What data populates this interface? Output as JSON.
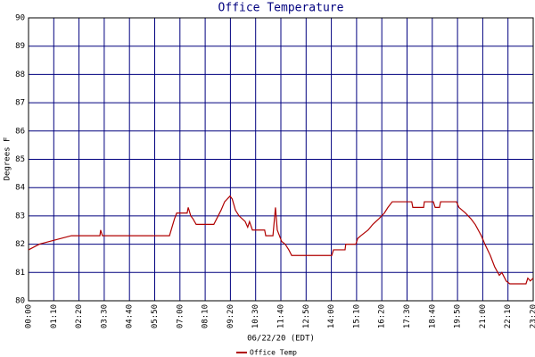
{
  "chart_data": {
    "type": "line",
    "title": "Office Temperature",
    "ylabel": "Degrees F",
    "xlabel": "06/22/20 (EDT)",
    "xlim": [
      0,
      1400
    ],
    "ylim": [
      80,
      90
    ],
    "yticks": [
      80,
      81,
      82,
      83,
      84,
      85,
      86,
      87,
      88,
      89,
      90
    ],
    "xticks": [
      {
        "value": 0,
        "label": "00:00"
      },
      {
        "value": 70,
        "label": "01:10"
      },
      {
        "value": 140,
        "label": "02:20"
      },
      {
        "value": 210,
        "label": "03:30"
      },
      {
        "value": 280,
        "label": "04:40"
      },
      {
        "value": 350,
        "label": "05:50"
      },
      {
        "value": 420,
        "label": "07:00"
      },
      {
        "value": 490,
        "label": "08:10"
      },
      {
        "value": 560,
        "label": "09:20"
      },
      {
        "value": 630,
        "label": "10:30"
      },
      {
        "value": 700,
        "label": "11:40"
      },
      {
        "value": 770,
        "label": "12:50"
      },
      {
        "value": 840,
        "label": "14:00"
      },
      {
        "value": 910,
        "label": "15:10"
      },
      {
        "value": 980,
        "label": "16:20"
      },
      {
        "value": 1050,
        "label": "17:30"
      },
      {
        "value": 1120,
        "label": "18:40"
      },
      {
        "value": 1190,
        "label": "19:50"
      },
      {
        "value": 1260,
        "label": "21:00"
      },
      {
        "value": 1330,
        "label": "22:10"
      },
      {
        "value": 1400,
        "label": "23:20"
      }
    ],
    "grid": true,
    "grid_color": "#00007f",
    "x": [
      0,
      30,
      59,
      119,
      198,
      200,
      205,
      391,
      398,
      405,
      411,
      440,
      443,
      450,
      456,
      465,
      514,
      522,
      534,
      544,
      559,
      565,
      574,
      584,
      601,
      608,
      613,
      621,
      655,
      658,
      678,
      685,
      690,
      702,
      712,
      722,
      730,
      841,
      846,
      878,
      880,
      908,
      913,
      922,
      942,
      955,
      972,
      987,
      997,
      1009,
      1063,
      1066,
      1096,
      1098,
      1123,
      1128,
      1140,
      1143,
      1187,
      1194,
      1212,
      1227,
      1239,
      1256,
      1266,
      1281,
      1293,
      1306,
      1313,
      1325,
      1335,
      1380,
      1385,
      1392,
      1400
    ],
    "series": [
      {
        "name": "Office Temp",
        "color": "#b00000",
        "values": [
          81.8,
          82.0,
          82.1,
          82.3,
          82.3,
          82.5,
          82.3,
          82.3,
          82.6,
          82.9,
          83.1,
          83.1,
          83.3,
          83.0,
          82.9,
          82.7,
          82.7,
          82.9,
          83.2,
          83.5,
          83.7,
          83.6,
          83.2,
          83.0,
          82.8,
          82.6,
          82.8,
          82.5,
          82.5,
          82.3,
          82.3,
          83.3,
          82.5,
          82.1,
          82.0,
          81.8,
          81.6,
          81.6,
          81.8,
          81.8,
          82.0,
          82.0,
          82.2,
          82.3,
          82.5,
          82.7,
          82.9,
          83.1,
          83.3,
          83.5,
          83.5,
          83.3,
          83.3,
          83.5,
          83.5,
          83.3,
          83.3,
          83.5,
          83.5,
          83.3,
          83.1,
          82.9,
          82.7,
          82.3,
          82.0,
          81.6,
          81.2,
          80.9,
          81.0,
          80.7,
          80.6,
          80.6,
          80.8,
          80.7,
          80.8
        ]
      }
    ]
  }
}
